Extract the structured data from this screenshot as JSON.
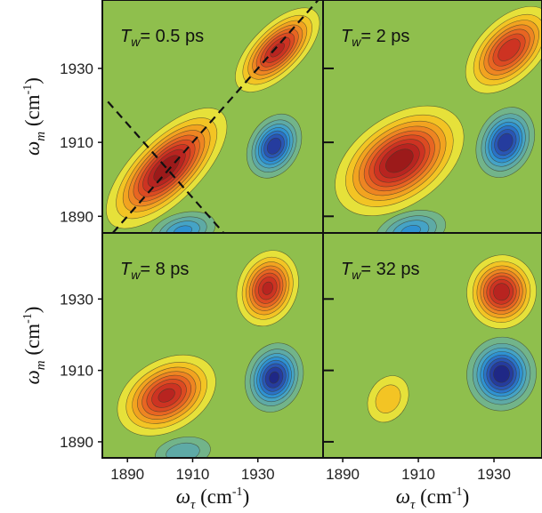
{
  "chart_data": {
    "type": "contour",
    "x_label": {
      "symbol": "ω",
      "subscript": "τ",
      "unit": " (cm",
      "unit_sup": "-1",
      "close": ")"
    },
    "y_label": {
      "symbol": "ω",
      "subscript": "m",
      "unit": " (cm",
      "unit_sup": "-1",
      "close": ")"
    },
    "levels": [
      0.1,
      0.2,
      0.3,
      0.4,
      0.5,
      0.6,
      0.7,
      0.8,
      0.9
    ],
    "background": "#8fbf4d",
    "positive_colors": [
      "#e6e13a",
      "#f3c424",
      "#f2a320",
      "#ee8522",
      "#e86522",
      "#dc4a22",
      "#cd3322",
      "#b82420",
      "#9c1a1a"
    ],
    "negative_colors": [
      "#72b48a",
      "#5eaaa6",
      "#45a3c6",
      "#2f92d2",
      "#2a73c8",
      "#2956b4",
      "#253c9e",
      "#1f2886",
      "#1a1a6a"
    ],
    "panels": [
      {
        "symbol": "T",
        "subscript": "w",
        "text": "= 0.5 ps",
        "diagonal": true,
        "antidiagonal": true,
        "xlim": [
          1882.3,
          1950
        ],
        "ylim": [
          1885.5,
          1948.5
        ],
        "xticks": [
          1890,
          1910,
          1930
        ],
        "yticks": [
          1890,
          1910,
          1930
        ],
        "peaks": [
          {
            "x": 1902,
            "y": 1903,
            "amplitude": 1,
            "sa": 10.5,
            "sb": 4.5,
            "angle": 45
          },
          {
            "x": 1936,
            "y": 1935,
            "amplitude": 0.85,
            "sa": 7.5,
            "sb": 3.5,
            "angle": 45
          },
          {
            "x": 1935,
            "y": 1909,
            "amplitude": -0.8,
            "sa": 4.8,
            "sb": 3.5,
            "angle": 60
          },
          {
            "x": 1907,
            "y": 1886,
            "amplitude": -0.45,
            "sa": 5.5,
            "sb": 3,
            "angle": 15
          }
        ]
      },
      {
        "symbol": "T",
        "subscript": "w",
        "text": "= 2 ps",
        "diagonal": false,
        "antidiagonal": false,
        "xlim": [
          1884.8,
          1942.7
        ],
        "ylim": [
          1885.5,
          1948.5
        ],
        "xticks": [
          1890,
          1910,
          1930
        ],
        "yticks": [
          1890,
          1910,
          1930
        ],
        "peaks": [
          {
            "x": 1905,
            "y": 1905,
            "amplitude": 1,
            "sa": 9,
            "sb": 5.5,
            "angle": 35
          },
          {
            "x": 1934,
            "y": 1935,
            "amplitude": 0.8,
            "sa": 7,
            "sb": 4,
            "angle": 45
          },
          {
            "x": 1933,
            "y": 1910,
            "amplitude": -0.8,
            "sa": 4.8,
            "sb": 3.6,
            "angle": 65
          },
          {
            "x": 1908,
            "y": 1886,
            "amplitude": -0.45,
            "sa": 5.5,
            "sb": 3,
            "angle": 15
          }
        ]
      },
      {
        "symbol": "T",
        "subscript": "w",
        "text": "= 8 ps",
        "diagonal": false,
        "antidiagonal": false,
        "xlim": [
          1882.3,
          1950
        ],
        "ylim": [
          1885.5,
          1948.5
        ],
        "xticks": [
          1890,
          1910,
          1930
        ],
        "yticks": [
          1890,
          1910,
          1930
        ],
        "peaks": [
          {
            "x": 1902,
            "y": 1903,
            "amplitude": 0.85,
            "sa": 7.5,
            "sb": 5,
            "angle": 30
          },
          {
            "x": 1933,
            "y": 1933,
            "amplitude": 0.85,
            "sa": 5.5,
            "sb": 4.2,
            "angle": 70
          },
          {
            "x": 1935,
            "y": 1908,
            "amplitude": -0.85,
            "sa": 5,
            "sb": 4,
            "angle": 70
          },
          {
            "x": 1907,
            "y": 1887,
            "amplitude": -0.3,
            "sa": 5.5,
            "sb": 3,
            "angle": 10
          }
        ]
      },
      {
        "symbol": "T",
        "subscript": "w",
        "text": "= 32 ps",
        "diagonal": false,
        "antidiagonal": false,
        "xlim": [
          1884.8,
          1942.7
        ],
        "ylim": [
          1885.5,
          1948.5
        ],
        "xticks": [
          1890,
          1910,
          1930
        ],
        "yticks": [
          1890,
          1910,
          1930
        ],
        "peaks": [
          {
            "x": 1902,
            "y": 1902,
            "amplitude": 0.3,
            "sa": 4.5,
            "sb": 3.5,
            "angle": 60
          },
          {
            "x": 1932,
            "y": 1932,
            "amplitude": 0.9,
            "sa": 4.8,
            "sb": 4.5,
            "angle": 80
          },
          {
            "x": 1932,
            "y": 1909,
            "amplitude": -0.9,
            "sa": 4.8,
            "sb": 4.5,
            "angle": 80
          }
        ]
      }
    ]
  }
}
